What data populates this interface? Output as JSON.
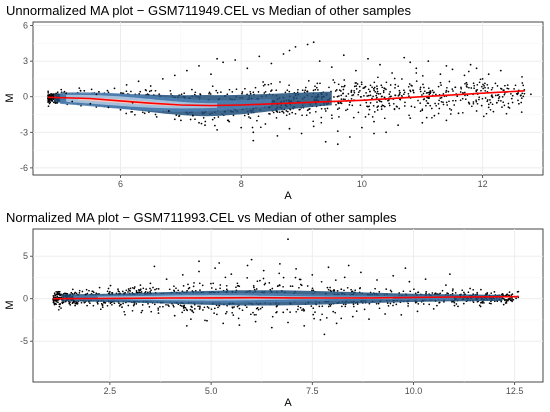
{
  "chart_data": [
    {
      "type": "scatter",
      "title": "Unnormalized MA plot − GSM711949.CEL vs Median of other samples",
      "xlabel": "A",
      "ylabel": "M",
      "xlim": [
        4.55,
        13.0
      ],
      "ylim": [
        -6.6,
        6.3
      ],
      "xticks": [
        6,
        8,
        10,
        12
      ],
      "yticks": [
        -6,
        -3,
        0,
        3,
        6
      ],
      "xtick_labels": [
        "6",
        "8",
        "10",
        "12"
      ],
      "ytick_labels": [
        "-6",
        "-3",
        "0",
        "3",
        "6"
      ],
      "grid": true,
      "points": [
        [
          4.9,
          -0.1
        ],
        [
          5.1,
          0.3
        ],
        [
          5.2,
          -0.4
        ],
        [
          5.4,
          0.5
        ],
        [
          5.5,
          -0.6
        ],
        [
          5.6,
          0.2
        ],
        [
          5.8,
          -0.9
        ],
        [
          5.9,
          0.7
        ],
        [
          6.0,
          -1.1
        ],
        [
          6.1,
          1.0
        ],
        [
          6.2,
          -0.5
        ],
        [
          6.3,
          1.3
        ],
        [
          6.4,
          -1.4
        ],
        [
          6.5,
          0.9
        ],
        [
          6.6,
          -1.7
        ],
        [
          6.7,
          1.5
        ],
        [
          6.8,
          -1.2
        ],
        [
          6.9,
          1.8
        ],
        [
          7.0,
          -2.0
        ],
        [
          7.1,
          2.2
        ],
        [
          7.2,
          -1.6
        ],
        [
          7.3,
          2.6
        ],
        [
          7.4,
          -2.4
        ],
        [
          7.5,
          1.9
        ],
        [
          7.6,
          -2.8
        ],
        [
          7.7,
          2.9
        ],
        [
          7.8,
          -2.1
        ],
        [
          7.9,
          3.1
        ],
        [
          8.0,
          -2.6
        ],
        [
          8.1,
          2.4
        ],
        [
          8.2,
          -3.0
        ],
        [
          8.3,
          3.4
        ],
        [
          8.4,
          -2.3
        ],
        [
          8.5,
          2.8
        ],
        [
          8.6,
          -3.3
        ],
        [
          8.7,
          3.6
        ],
        [
          8.8,
          -2.7
        ],
        [
          8.9,
          4.2
        ],
        [
          9.0,
          -3.1
        ],
        [
          9.1,
          4.4
        ],
        [
          9.2,
          -2.5
        ],
        [
          9.3,
          3.0
        ],
        [
          9.4,
          -3.8
        ],
        [
          9.5,
          2.5
        ],
        [
          9.6,
          -2.9
        ],
        [
          9.7,
          3.5
        ],
        [
          9.8,
          -3.4
        ],
        [
          9.9,
          2.2
        ],
        [
          10.0,
          -2.6
        ],
        [
          10.1,
          3.2
        ],
        [
          10.2,
          -2.1
        ],
        [
          10.3,
          2.7
        ],
        [
          10.4,
          -3.0
        ],
        [
          10.5,
          2.0
        ],
        [
          10.6,
          -2.4
        ],
        [
          10.7,
          3.3
        ],
        [
          10.8,
          -1.8
        ],
        [
          10.9,
          2.4
        ],
        [
          11.0,
          -2.2
        ],
        [
          11.1,
          3.0
        ],
        [
          11.2,
          -1.6
        ],
        [
          11.3,
          1.9
        ],
        [
          11.4,
          -2.0
        ],
        [
          11.5,
          2.3
        ],
        [
          11.6,
          -1.4
        ],
        [
          11.7,
          1.8
        ],
        [
          11.8,
          2.7
        ],
        [
          11.9,
          -1.2
        ],
        [
          12.0,
          1.5
        ],
        [
          12.1,
          -0.9
        ],
        [
          12.3,
          2.2
        ],
        [
          12.4,
          0.4
        ],
        [
          12.6,
          -0.6
        ],
        [
          12.8,
          0.2
        ],
        [
          9.2,
          4.6
        ],
        [
          8.8,
          3.9
        ],
        [
          7.6,
          3.2
        ],
        [
          10.8,
          2.9
        ],
        [
          11.4,
          2.6
        ],
        [
          6.9,
          -1.9
        ],
        [
          8.2,
          -3.7
        ],
        [
          9.6,
          -4.0
        ],
        [
          10.2,
          -3.1
        ],
        [
          7.3,
          -2.2
        ],
        [
          11.9,
          2.4
        ],
        [
          12.1,
          1.9
        ]
      ],
      "loess": {
        "color": "#ff0000",
        "x": [
          4.8,
          5.5,
          6.0,
          6.5,
          7.0,
          7.5,
          8.0,
          9.0,
          10.0,
          11.0,
          12.0,
          12.7
        ],
        "y": [
          -0.05,
          -0.15,
          -0.35,
          -0.55,
          -0.7,
          -0.75,
          -0.7,
          -0.5,
          -0.3,
          0.0,
          0.3,
          0.5
        ]
      }
    },
    {
      "type": "scatter",
      "title": "Normalized MA plot − GSM711993.CEL vs Median of other samples",
      "xlabel": "A",
      "ylabel": "M",
      "xlim": [
        0.6,
        13.2
      ],
      "ylim": [
        -9.8,
        8.2
      ],
      "xticks": [
        2.5,
        5.0,
        7.5,
        10.0,
        12.5
      ],
      "yticks": [
        -5,
        0,
        5
      ],
      "xtick_labels": [
        "2.5",
        "5.0",
        "7.5",
        "10.0",
        "12.5"
      ],
      "ytick_labels": [
        "-5",
        "0",
        "5"
      ],
      "grid": true,
      "points": [
        [
          1.3,
          0.1
        ],
        [
          1.6,
          -0.3
        ],
        [
          1.9,
          0.5
        ],
        [
          2.2,
          -0.6
        ],
        [
          2.5,
          0.8
        ],
        [
          2.8,
          -1.0
        ],
        [
          3.1,
          1.2
        ],
        [
          3.3,
          -1.4
        ],
        [
          3.5,
          1.8
        ],
        [
          3.7,
          -1.7
        ],
        [
          3.9,
          2.3
        ],
        [
          4.1,
          -2.0
        ],
        [
          4.3,
          2.8
        ],
        [
          4.5,
          -2.4
        ],
        [
          4.7,
          3.2
        ],
        [
          4.9,
          -2.6
        ],
        [
          5.1,
          3.6
        ],
        [
          5.3,
          -2.9
        ],
        [
          5.5,
          2.9
        ],
        [
          5.7,
          -3.1
        ],
        [
          5.9,
          3.9
        ],
        [
          6.1,
          -2.7
        ],
        [
          6.3,
          3.3
        ],
        [
          6.5,
          -3.4
        ],
        [
          6.7,
          4.1
        ],
        [
          6.9,
          -2.8
        ],
        [
          7.1,
          3.5
        ],
        [
          7.3,
          -3.2
        ],
        [
          7.5,
          2.8
        ],
        [
          7.7,
          -2.5
        ],
        [
          7.9,
          3.7
        ],
        [
          8.1,
          -2.9
        ],
        [
          8.3,
          2.5
        ],
        [
          8.5,
          -2.1
        ],
        [
          8.7,
          3.1
        ],
        [
          8.9,
          -2.4
        ],
        [
          9.1,
          2.2
        ],
        [
          9.3,
          -1.8
        ],
        [
          9.5,
          2.7
        ],
        [
          9.7,
          -1.9
        ],
        [
          9.9,
          2.0
        ],
        [
          10.1,
          -1.5
        ],
        [
          10.3,
          2.3
        ],
        [
          10.5,
          -1.2
        ],
        [
          10.8,
          1.6
        ],
        [
          11.1,
          -0.9
        ],
        [
          11.4,
          1.2
        ],
        [
          11.7,
          -0.5
        ],
        [
          12.0,
          0.8
        ],
        [
          12.4,
          -0.2
        ],
        [
          6.9,
          7.0
        ],
        [
          4.7,
          4.4
        ],
        [
          5.2,
          4.2
        ],
        [
          3.6,
          3.8
        ],
        [
          8.4,
          3.9
        ],
        [
          7.8,
          -4.2
        ],
        [
          4.4,
          -3.2
        ],
        [
          6.0,
          4.6
        ],
        [
          9.8,
          3.6
        ],
        [
          10.9,
          2.9
        ]
      ],
      "loess": {
        "color": "#ff0000",
        "x": [
          1.1,
          2.0,
          3.0,
          4.0,
          5.0,
          6.0,
          7.0,
          8.0,
          9.0,
          10.0,
          11.0,
          12.6
        ],
        "y": [
          0.0,
          0.02,
          0.05,
          0.08,
          0.1,
          0.12,
          0.1,
          0.08,
          0.1,
          0.15,
          0.2,
          0.25
        ]
      }
    }
  ]
}
